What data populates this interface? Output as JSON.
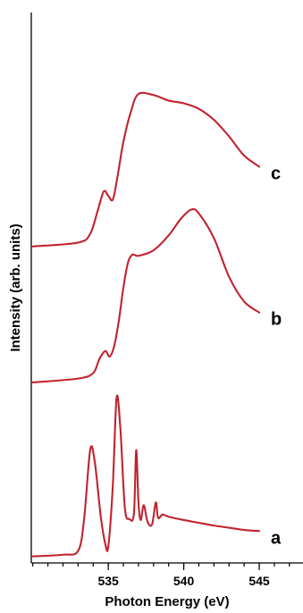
{
  "chart_data": {
    "type": "line",
    "title": "",
    "xlabel": "Photon Energy (eV)",
    "ylabel": "Intensity (arb. units)",
    "xlim": [
      529.9,
      547.9
    ],
    "ylim": [
      0,
      1
    ],
    "grid": false,
    "legend": "none",
    "yticks_shown": false,
    "xticks_major": [
      535,
      540,
      545
    ],
    "xticks_minor": [
      530,
      531,
      532,
      533,
      534,
      535,
      536,
      537,
      538,
      539,
      540,
      541,
      542,
      543,
      544,
      545,
      546,
      547
    ],
    "color": "#c0232f",
    "series": [
      {
        "name": "a",
        "x": [
          530.0,
          532.0,
          533.0,
          533.4,
          533.8,
          534.1,
          534.5,
          534.8,
          535.0,
          535.3,
          535.55,
          535.8,
          536.1,
          536.4,
          536.7,
          536.85,
          537.0,
          537.15,
          537.35,
          537.6,
          537.9,
          538.15,
          538.3,
          538.6,
          539.0,
          540.0,
          541.0,
          542.0,
          543.0,
          544.0,
          545.0
        ],
        "y": [
          0.012,
          0.015,
          0.022,
          0.08,
          0.205,
          0.185,
          0.085,
          0.035,
          0.03,
          0.14,
          0.3,
          0.245,
          0.1,
          0.08,
          0.09,
          0.205,
          0.11,
          0.078,
          0.105,
          0.075,
          0.07,
          0.11,
          0.082,
          0.088,
          0.084,
          0.078,
          0.073,
          0.068,
          0.064,
          0.06,
          0.058
        ]
      },
      {
        "name": "b",
        "x": [
          530.0,
          533.0,
          534.0,
          534.4,
          534.8,
          535.1,
          535.4,
          535.7,
          536.0,
          536.3,
          536.6,
          537.0,
          538.0,
          539.0,
          539.8,
          540.5,
          541.0,
          542.0,
          543.0,
          544.0,
          545.0
        ],
        "y": [
          0.328,
          0.335,
          0.345,
          0.37,
          0.385,
          0.375,
          0.395,
          0.44,
          0.5,
          0.545,
          0.56,
          0.558,
          0.568,
          0.595,
          0.625,
          0.642,
          0.635,
          0.59,
          0.52,
          0.475,
          0.455
        ]
      },
      {
        "name": "c",
        "x": [
          530.0,
          533.0,
          533.8,
          534.3,
          534.7,
          535.0,
          535.3,
          535.6,
          536.0,
          536.5,
          537.0,
          538.0,
          539.0,
          540.0,
          541.0,
          542.0,
          543.0,
          544.0,
          545.0
        ],
        "y": [
          0.575,
          0.582,
          0.598,
          0.64,
          0.675,
          0.667,
          0.66,
          0.7,
          0.765,
          0.82,
          0.852,
          0.85,
          0.84,
          0.835,
          0.825,
          0.805,
          0.775,
          0.74,
          0.72
        ]
      }
    ],
    "series_labels": [
      "a",
      "b",
      "c"
    ]
  }
}
